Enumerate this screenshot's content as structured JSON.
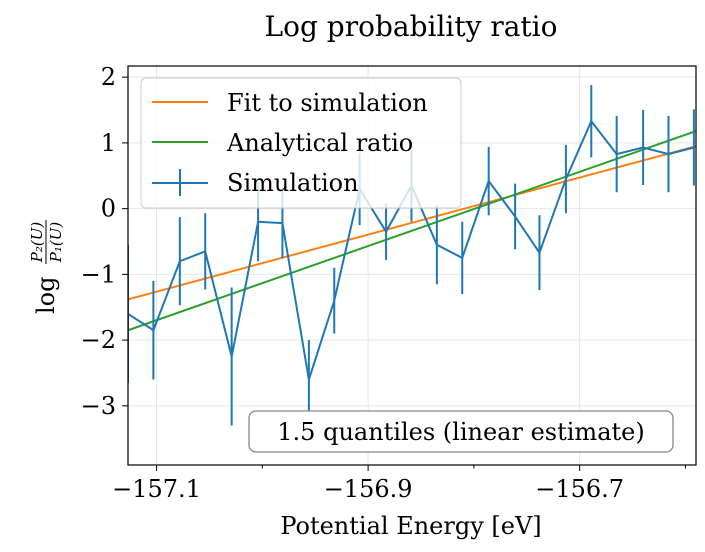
{
  "chart_data": {
    "type": "line",
    "title": "Log probability ratio",
    "xlabel": "Potential Energy [eV]",
    "ylabel": {
      "prefix": "log",
      "numerator": "P₂(U)",
      "denominator": "P₁(U)"
    },
    "xlim": [
      -157.127,
      -156.59
    ],
    "ylim": [
      -3.9,
      2.17
    ],
    "xticks": [
      {
        "v": -157.1,
        "label": "−157.1"
      },
      {
        "v": -156.9,
        "label": "−156.9"
      },
      {
        "v": -156.7,
        "label": "−156.7"
      }
    ],
    "xminor": [
      -157.0,
      -156.8,
      -156.6
    ],
    "yticks": [
      {
        "v": 2,
        "label": "2"
      },
      {
        "v": 1,
        "label": "1"
      },
      {
        "v": 0,
        "label": "0"
      },
      {
        "v": -1,
        "label": "−1"
      },
      {
        "v": -2,
        "label": "−2"
      },
      {
        "v": -3,
        "label": "−3"
      }
    ],
    "grid": true,
    "legend_placement": "upper-left",
    "annotation": "1.5 quantiles (linear estimate)",
    "series": [
      {
        "name": "Fit to simulation",
        "color": "#ff7f0e",
        "kind": "line",
        "x": [
          -157.127,
          -156.59
        ],
        "y": [
          -1.38,
          0.95
        ]
      },
      {
        "name": "Analytical ratio",
        "color": "#2ca02c",
        "kind": "line",
        "x": [
          -157.127,
          -156.59
        ],
        "y": [
          -1.85,
          1.18
        ]
      },
      {
        "name": "Simulation",
        "color": "#1f77b4",
        "kind": "errorbar",
        "x": [
          -157.127,
          -157.103,
          -157.078,
          -157.054,
          -157.029,
          -157.004,
          -156.981,
          -156.956,
          -156.932,
          -156.908,
          -156.883,
          -156.859,
          -156.835,
          -156.811,
          -156.786,
          -156.761,
          -156.738,
          -156.713,
          -156.689,
          -156.665,
          -156.64,
          -156.616,
          -156.592
        ],
        "y": [
          -1.6,
          -1.85,
          -0.8,
          -0.65,
          -2.25,
          -0.2,
          -0.22,
          -2.6,
          -1.4,
          0.3,
          -0.35,
          0.35,
          -0.55,
          -0.75,
          0.42,
          -0.12,
          -0.67,
          0.45,
          1.33,
          0.83,
          0.93,
          0.83,
          0.93
        ],
        "err": [
          1.05,
          0.75,
          0.67,
          0.58,
          1.05,
          0.6,
          0.53,
          0.6,
          0.5,
          0.55,
          0.43,
          0.55,
          0.6,
          0.55,
          0.52,
          0.5,
          0.57,
          0.52,
          0.55,
          0.58,
          0.57,
          0.58,
          0.58
        ]
      }
    ]
  }
}
